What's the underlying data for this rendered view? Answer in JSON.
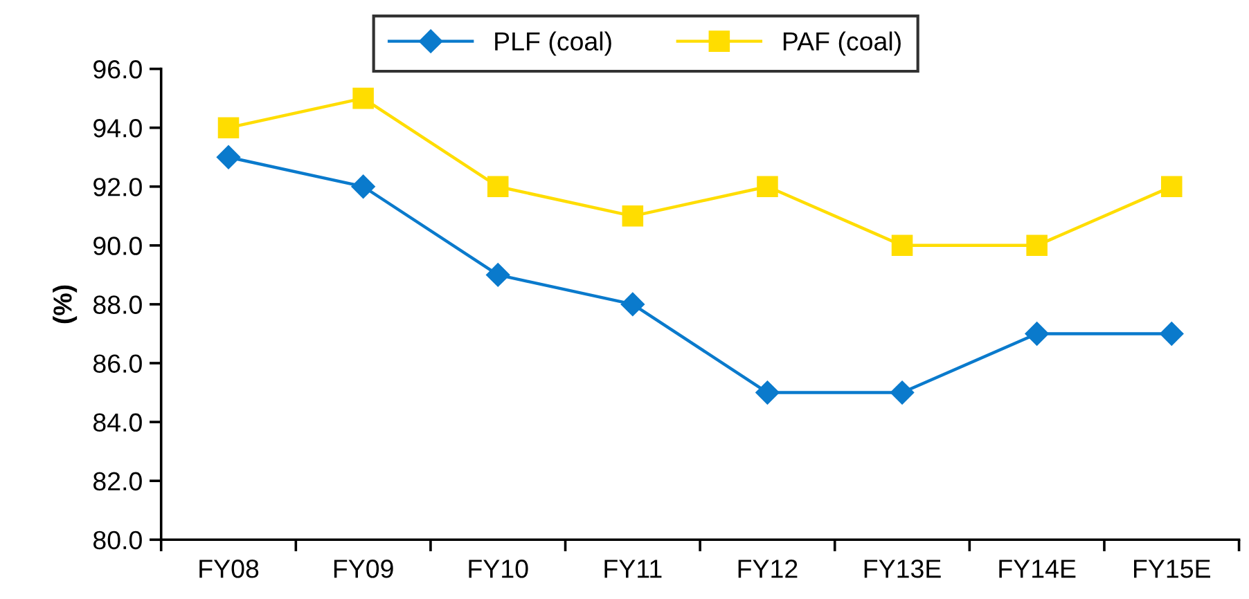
{
  "chart_data": {
    "type": "line",
    "categories": [
      "FY08",
      "FY09",
      "FY10",
      "FY11",
      "FY12",
      "FY13E",
      "FY14E",
      "FY15E"
    ],
    "series": [
      {
        "name": "PLF (coal)",
        "color": "#0a7acc",
        "marker": "diamond",
        "values": [
          93,
          92,
          89,
          88,
          85,
          85,
          87,
          87
        ]
      },
      {
        "name": "PAF (coal)",
        "color": "#ffdd00",
        "marker": "square",
        "values": [
          94,
          95,
          92,
          91,
          92,
          90,
          90,
          92
        ]
      }
    ],
    "ylabel": "(%)",
    "ylim": [
      80,
      96
    ],
    "yticks": [
      {
        "value": 80,
        "label": "80.0"
      },
      {
        "value": 82,
        "label": "82.0"
      },
      {
        "value": 84,
        "label": "84.0"
      },
      {
        "value": 86,
        "label": "86.0"
      },
      {
        "value": 88,
        "label": "88.0"
      },
      {
        "value": 90,
        "label": "90.0"
      },
      {
        "value": 92,
        "label": "92.0"
      },
      {
        "value": 94,
        "label": "94.0"
      },
      {
        "value": 96,
        "label": "96.0"
      }
    ],
    "grid": false,
    "legend": "top",
    "line_style": "solid"
  }
}
